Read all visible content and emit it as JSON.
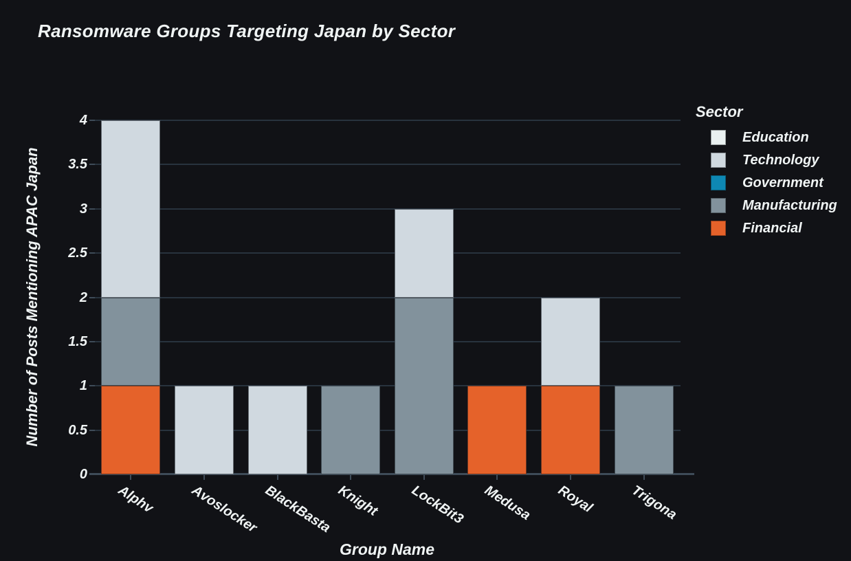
{
  "theme": {
    "background": "#111216",
    "text_color": "#f0f4f4",
    "gridline_color": "#28333e",
    "axis_line_color": "#3e4b58"
  },
  "chart_data": {
    "type": "bar",
    "stacked": true,
    "title": "Ransomware Groups Targeting Japan by Sector",
    "xlabel": "Group Name",
    "ylabel": "Number of Posts Mentioning APAC Japan",
    "legend_title": "Sector",
    "legend_position": "right",
    "grid": true,
    "ylim": [
      0,
      4
    ],
    "yticks": [
      0,
      0.5,
      1,
      1.5,
      2,
      2.5,
      3,
      3.5,
      4
    ],
    "categories": [
      "Alphv",
      "Avoslocker",
      "BlackBasta",
      "Knight",
      "LockBit3",
      "Medusa",
      "Royal",
      "Trigona"
    ],
    "series": [
      {
        "name": "Education",
        "color": "#eaf1f1",
        "values": [
          0,
          0,
          0,
          0,
          0,
          0,
          0,
          0
        ]
      },
      {
        "name": "Technology",
        "color": "#d0d9e0",
        "values": [
          2,
          1,
          1,
          0,
          1,
          0,
          1,
          0
        ]
      },
      {
        "name": "Government",
        "color": "#0e88b4",
        "values": [
          0,
          0,
          0,
          0,
          0,
          0,
          0,
          0
        ]
      },
      {
        "name": "Manufacturing",
        "color": "#82929c",
        "values": [
          1,
          0,
          0,
          1,
          2,
          0,
          0,
          1
        ]
      },
      {
        "name": "Financial",
        "color": "#e5622a",
        "values": [
          1,
          0,
          0,
          0,
          0,
          1,
          1,
          0
        ]
      }
    ],
    "stack_order_bottom_to_top": [
      "Financial",
      "Manufacturing",
      "Technology",
      "Government",
      "Education"
    ]
  }
}
